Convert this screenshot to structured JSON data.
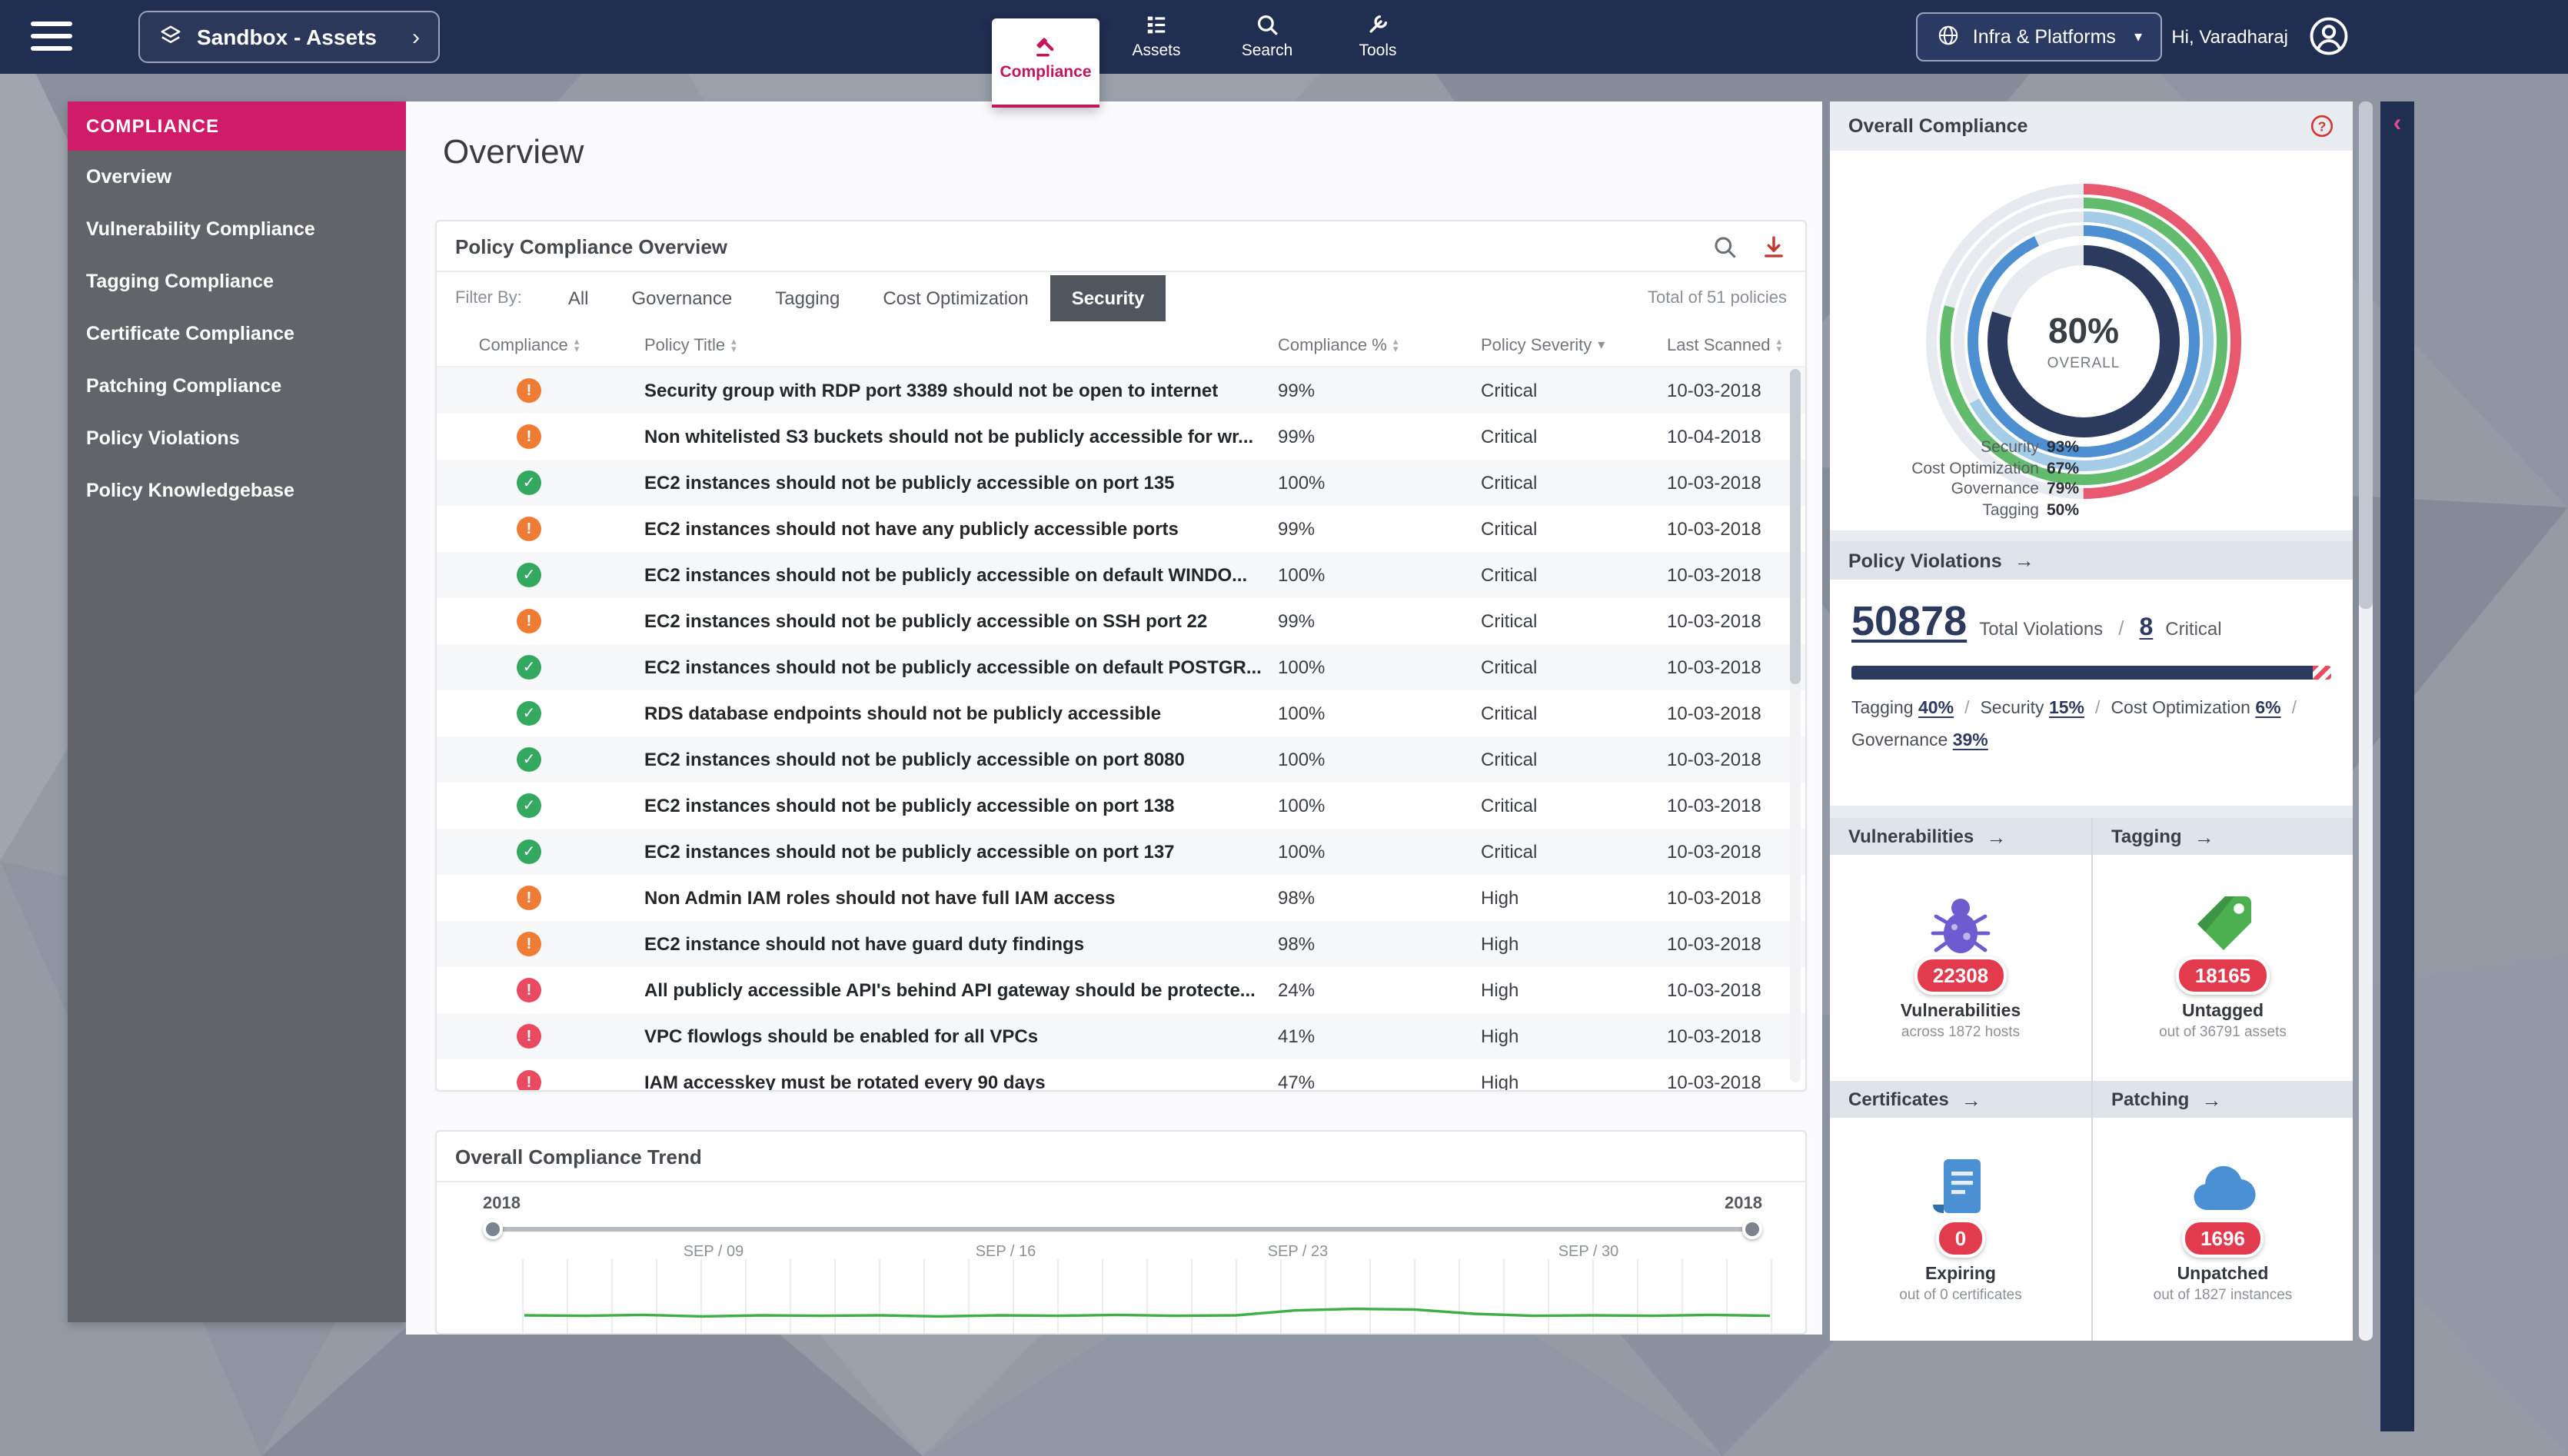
{
  "colors": {
    "topbar": "#202e52",
    "accent_pink": "#d01b69",
    "navy": "#2c3a5e",
    "green": "#35a860",
    "orange": "#ee7c34",
    "red": "#e84a5f",
    "badge_red": "#e23b4e"
  },
  "topbar": {
    "workspace_label": "Sandbox - Assets",
    "tabs": [
      {
        "label": "Compliance",
        "icon": "gavel-icon",
        "active": true
      },
      {
        "label": "Assets",
        "icon": "assets-icon",
        "active": false
      },
      {
        "label": "Search",
        "icon": "search-icon",
        "active": false
      },
      {
        "label": "Tools",
        "icon": "wrench-icon",
        "active": false
      }
    ],
    "environment_label": "Infra & Platforms",
    "greeting": "Hi, Varadharaj"
  },
  "sidebar": {
    "header": "COMPLIANCE",
    "items": [
      {
        "label": "Overview"
      },
      {
        "label": "Vulnerability Compliance"
      },
      {
        "label": "Tagging Compliance"
      },
      {
        "label": "Certificate Compliance"
      },
      {
        "label": "Patching Compliance"
      },
      {
        "label": "Policy Violations"
      },
      {
        "label": "Policy Knowledgebase"
      }
    ]
  },
  "main": {
    "page_title": "Overview",
    "policy_card": {
      "title": "Policy Compliance Overview",
      "filter_label": "Filter By:",
      "filters": [
        "All",
        "Governance",
        "Tagging",
        "Cost Optimization",
        "Security"
      ],
      "active_filter": "Security",
      "total_text": "Total of 51 policies",
      "columns": [
        {
          "label": "Compliance",
          "sort": "both"
        },
        {
          "label": "Policy Title",
          "sort": "both"
        },
        {
          "label": "Compliance %",
          "sort": "both"
        },
        {
          "label": "Policy Severity",
          "sort": "desc"
        },
        {
          "label": "Last Scanned",
          "sort": "both"
        }
      ],
      "rows": [
        {
          "status": "warning",
          "title": "Security group with RDP port 3389 should not be open to internet",
          "compliance": "99%",
          "severity": "Critical",
          "last_scanned": "10-03-2018"
        },
        {
          "status": "warning",
          "title": "Non whitelisted S3 buckets should not be publicly accessible for wr...",
          "compliance": "99%",
          "severity": "Critical",
          "last_scanned": "10-04-2018"
        },
        {
          "status": "ok",
          "title": "EC2 instances should not be publicly accessible on port 135",
          "compliance": "100%",
          "severity": "Critical",
          "last_scanned": "10-03-2018"
        },
        {
          "status": "warning",
          "title": "EC2 instances should not have any publicly accessible ports",
          "compliance": "99%",
          "severity": "Critical",
          "last_scanned": "10-03-2018"
        },
        {
          "status": "ok",
          "title": "EC2 instances should not be publicly accessible on default WINDO...",
          "compliance": "100%",
          "severity": "Critical",
          "last_scanned": "10-03-2018"
        },
        {
          "status": "warning",
          "title": "EC2 instances should not be publicly accessible on SSH port 22",
          "compliance": "99%",
          "severity": "Critical",
          "last_scanned": "10-03-2018"
        },
        {
          "status": "ok",
          "title": "EC2 instances should not be publicly accessible on default POSTGR...",
          "compliance": "100%",
          "severity": "Critical",
          "last_scanned": "10-03-2018"
        },
        {
          "status": "ok",
          "title": "RDS database endpoints should not be publicly accessible",
          "compliance": "100%",
          "severity": "Critical",
          "last_scanned": "10-03-2018"
        },
        {
          "status": "ok",
          "title": "EC2 instances should not be publicly accessible on port 8080",
          "compliance": "100%",
          "severity": "Critical",
          "last_scanned": "10-03-2018"
        },
        {
          "status": "ok",
          "title": "EC2 instances should not be publicly accessible on port 138",
          "compliance": "100%",
          "severity": "Critical",
          "last_scanned": "10-03-2018"
        },
        {
          "status": "ok",
          "title": "EC2 instances should not be publicly accessible on port 137",
          "compliance": "100%",
          "severity": "Critical",
          "last_scanned": "10-03-2018"
        },
        {
          "status": "warning",
          "title": "Non Admin IAM roles should not have full IAM access",
          "compliance": "98%",
          "severity": "High",
          "last_scanned": "10-03-2018"
        },
        {
          "status": "warning",
          "title": "EC2 instance should not have guard duty findings",
          "compliance": "98%",
          "severity": "High",
          "last_scanned": "10-03-2018"
        },
        {
          "status": "error",
          "title": "All publicly accessible API's behind API gateway should be protecte...",
          "compliance": "24%",
          "severity": "High",
          "last_scanned": "10-03-2018"
        },
        {
          "status": "error",
          "title": "VPC flowlogs should be enabled for all VPCs",
          "compliance": "41%",
          "severity": "High",
          "last_scanned": "10-03-2018"
        },
        {
          "status": "error",
          "title": "IAM accesskey must be rotated every 90 days",
          "compliance": "47%",
          "severity": "High",
          "last_scanned": "10-03-2018"
        }
      ]
    },
    "trend_card": {
      "title": "Overall Compliance Trend",
      "range_start": "2018",
      "range_end": "2018",
      "ticks": [
        "SEP / 09",
        "SEP / 16",
        "SEP / 23",
        "SEP / 30"
      ]
    }
  },
  "right_panel": {
    "overall": {
      "title": "Overall Compliance",
      "center_value": "80%",
      "center_label": "OVERALL",
      "overall_pct": 80,
      "metrics": [
        {
          "label": "Security",
          "value": "93%",
          "pct": 93,
          "color": "#4d8fd1"
        },
        {
          "label": "Cost Optimization",
          "value": "67%",
          "pct": 67,
          "color": "#a5cde8"
        },
        {
          "label": "Governance",
          "value": "79%",
          "pct": 79,
          "color": "#63bb6d"
        },
        {
          "label": "Tagging",
          "value": "50%",
          "pct": 50,
          "color": "#e8596f"
        }
      ]
    },
    "violations": {
      "title": "Policy Violations",
      "total": "50878",
      "total_label": "Total Violations",
      "separator": "/",
      "critical_value": "8",
      "critical_label": "Critical",
      "bar_pct": 96,
      "breakdown": [
        {
          "label": "Tagging",
          "value": "40%"
        },
        {
          "label": "Security",
          "value": "15%"
        },
        {
          "label": "Cost Optimization",
          "value": "6%"
        },
        {
          "label": "Governance",
          "value": "39%"
        }
      ]
    },
    "stat_cards": [
      {
        "title": "Vulnerabilities",
        "icon": "bug-icon",
        "count": "22308",
        "label": "Vulnerabilities",
        "sub": "across 1872 hosts"
      },
      {
        "title": "Tagging",
        "icon": "tag-icon",
        "count": "18165",
        "label": "Untagged",
        "sub": "out of 36791 assets"
      },
      {
        "title": "Certificates",
        "icon": "certificate-icon",
        "count": "0",
        "label": "Expiring",
        "sub": "out of 0 certificates"
      },
      {
        "title": "Patching",
        "icon": "cloud-icon",
        "count": "1696",
        "label": "Unpatched",
        "sub": "out of 1827 instances"
      }
    ]
  },
  "chart_data": [
    {
      "type": "donut",
      "title": "Overall Compliance",
      "center_value": 80,
      "unit": "%",
      "series": [
        {
          "name": "Overall",
          "value": 80
        },
        {
          "name": "Security",
          "value": 93
        },
        {
          "name": "Cost Optimization",
          "value": 67
        },
        {
          "name": "Governance",
          "value": 79
        },
        {
          "name": "Tagging",
          "value": 50
        }
      ]
    },
    {
      "type": "line",
      "title": "Overall Compliance Trend",
      "x_range": [
        "2018",
        "2018"
      ],
      "x_ticks": [
        "SEP / 09",
        "SEP / 16",
        "SEP / 23",
        "SEP / 30"
      ],
      "ylim": [
        0,
        100
      ],
      "series": [
        {
          "name": "Overall Compliance",
          "values": [
            97,
            96.9,
            97.1,
            96.8,
            97,
            96.9,
            97,
            96.8,
            97,
            96.9,
            97.1,
            96.9,
            97,
            97.9,
            98.2,
            98.1,
            97.3,
            96.9,
            97,
            96.9,
            97.1,
            96.9
          ]
        }
      ]
    }
  ]
}
